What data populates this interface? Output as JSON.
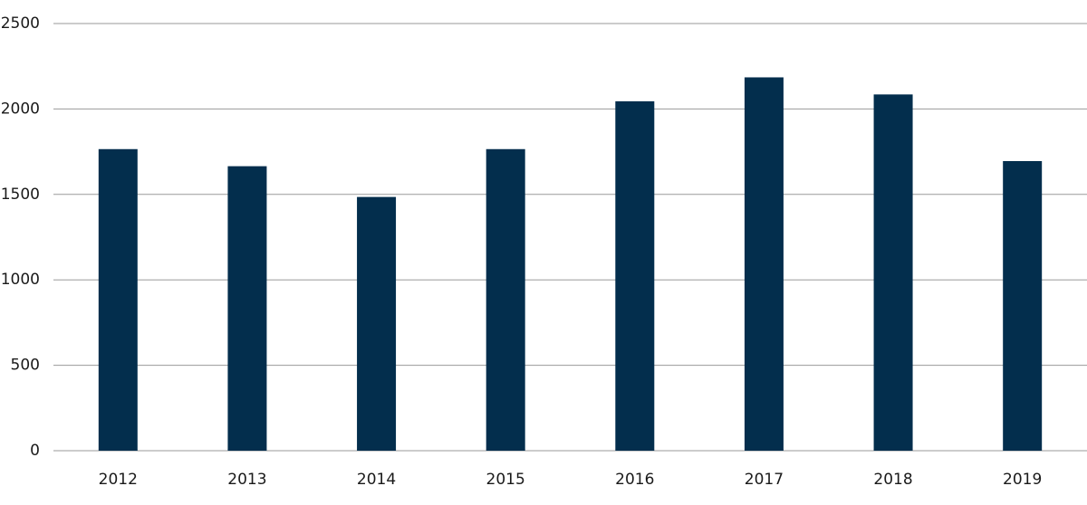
{
  "chart_data": {
    "type": "bar",
    "categories": [
      "2012",
      "2013",
      "2014",
      "2015",
      "2016",
      "2017",
      "2018",
      "2019"
    ],
    "values": [
      1765,
      1665,
      1485,
      1765,
      2045,
      2185,
      2085,
      1695
    ],
    "color": "#032e4d",
    "ylim": [
      0,
      2500
    ],
    "yticks": [
      0,
      500,
      1000,
      1500,
      2000,
      2500
    ],
    "grid": true
  }
}
